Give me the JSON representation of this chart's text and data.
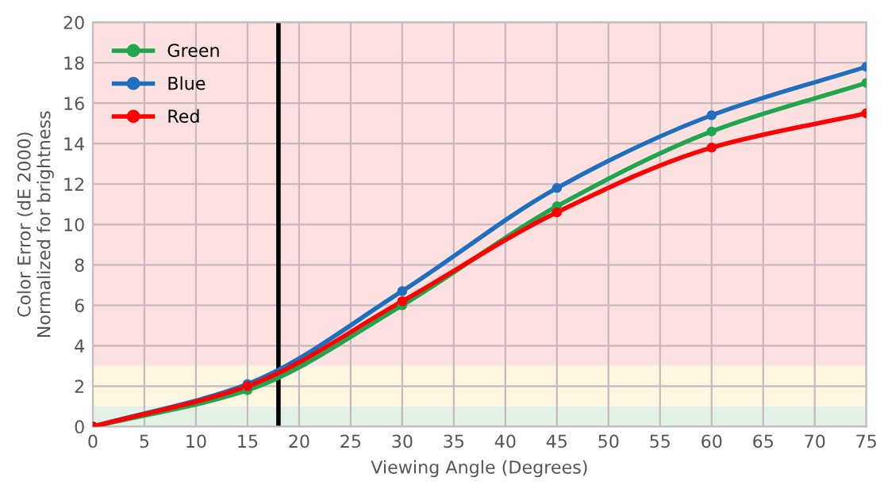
{
  "chart_data": {
    "type": "line",
    "xlabel": "Viewing Angle (Degrees)",
    "ylabel": "Color Error (dE 2000)\nNormalized for brightness",
    "x": [
      0,
      15,
      30,
      45,
      60,
      75
    ],
    "series": [
      {
        "name": "Green",
        "color": "#21a650",
        "values": [
          0,
          1.8,
          6.0,
          10.9,
          14.6,
          17.0
        ]
      },
      {
        "name": "Blue",
        "color": "#1f6fbf",
        "values": [
          0,
          2.1,
          6.7,
          11.8,
          15.4,
          17.8
        ]
      },
      {
        "name": "Red",
        "color": "#ff0000",
        "values": [
          0,
          2.0,
          6.2,
          10.6,
          13.8,
          15.5
        ]
      }
    ],
    "xlim": [
      0,
      75
    ],
    "xticks": [
      0,
      5,
      10,
      15,
      20,
      25,
      30,
      35,
      40,
      45,
      50,
      55,
      60,
      65,
      70,
      75
    ],
    "ylim": [
      0,
      20
    ],
    "yticks": [
      0,
      2,
      4,
      6,
      8,
      10,
      12,
      14,
      16,
      18,
      20
    ],
    "bands": [
      {
        "axis": "y",
        "from": 0,
        "to": 1,
        "color": "#e2f3e6"
      },
      {
        "axis": "y",
        "from": 1,
        "to": 3,
        "color": "#fdf7e2"
      },
      {
        "axis": "y",
        "from": 3,
        "to": 20,
        "color": "#fde1e1"
      }
    ],
    "ref_lines": [
      {
        "axis": "x",
        "value": 18,
        "color": "#000000",
        "line_style": "solid"
      }
    ],
    "grid": true,
    "legend": "top left",
    "marker": "circle",
    "line_style": "solid"
  }
}
